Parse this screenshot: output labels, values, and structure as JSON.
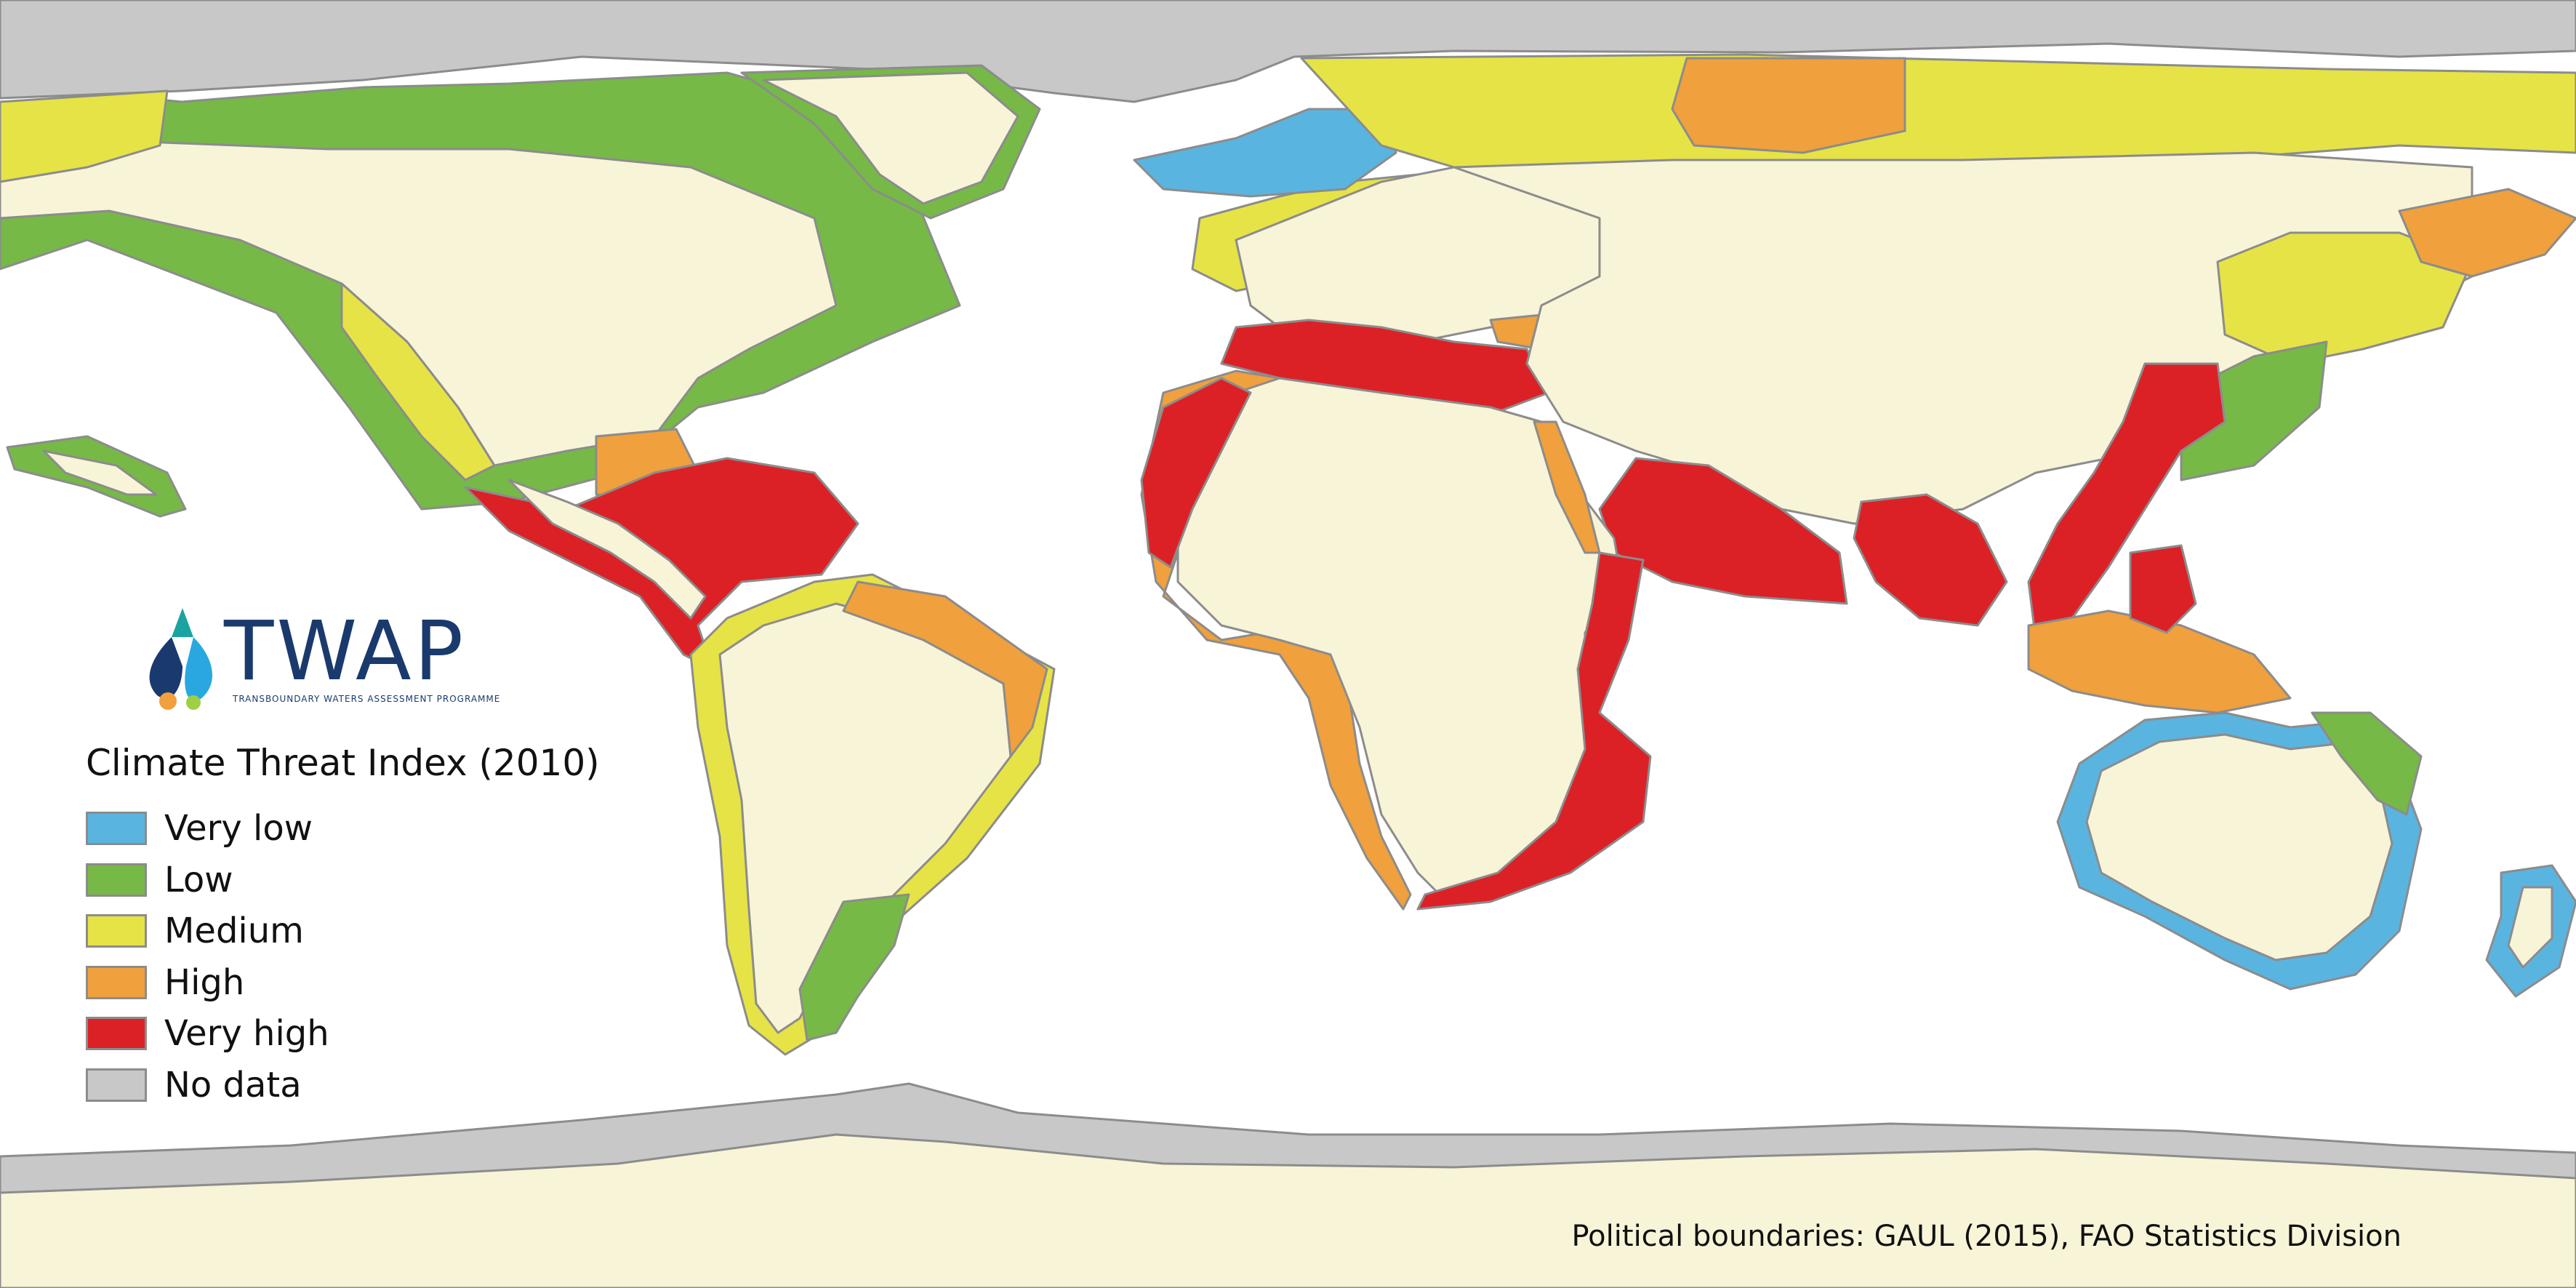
{
  "legend": {
    "title": "Climate Threat Index (2010)",
    "items": [
      {
        "label": "Very low",
        "color": "#5ab4e0"
      },
      {
        "label": "Low",
        "color": "#76b947"
      },
      {
        "label": "Medium",
        "color": "#e6e346"
      },
      {
        "label": "High",
        "color": "#f0a03c"
      },
      {
        "label": "Very high",
        "color": "#dc2126"
      },
      {
        "label": "No data",
        "color": "#c8c8c8"
      }
    ]
  },
  "logo": {
    "name": "TWAP",
    "subtitle": "TRANSBOUNDARY WATERS ASSESSMENT PROGRAMME"
  },
  "credit": "Political boundaries: GAUL (2015), FAO Statistics Division",
  "colors": {
    "land": "#f8f4d8",
    "ocean": "#ffffff",
    "border": "#8c8c8c"
  }
}
